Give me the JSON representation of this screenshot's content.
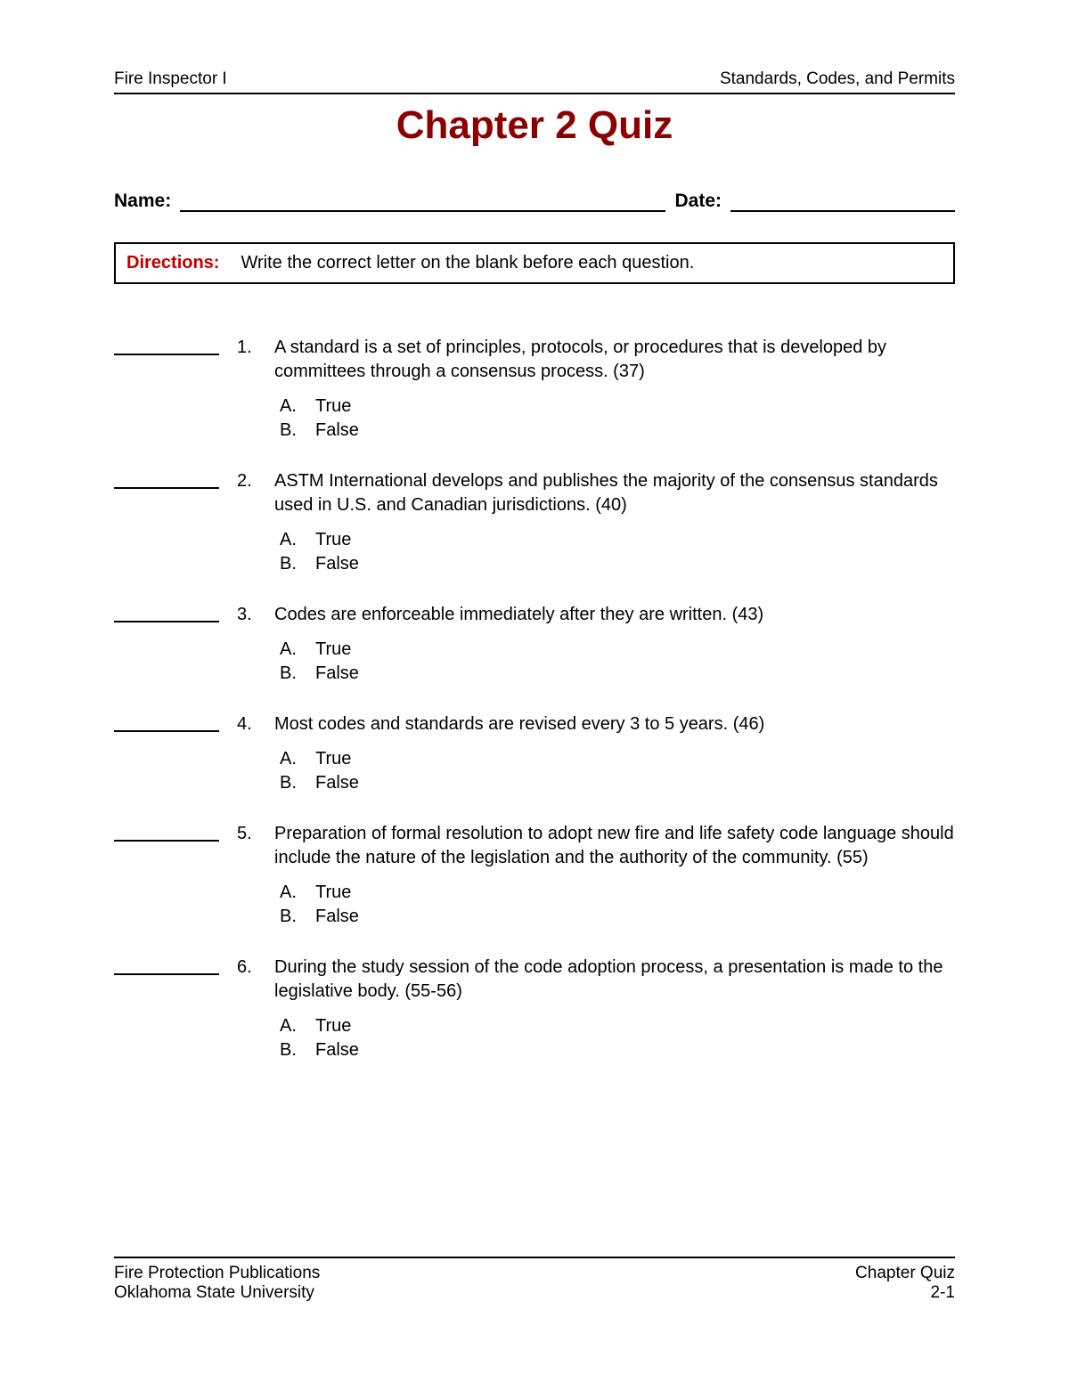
{
  "header": {
    "left": "Fire Inspector I",
    "right": "Standards, Codes, and Permits"
  },
  "title": "Chapter 2 Quiz",
  "fields": {
    "name_label": "Name:",
    "date_label": "Date:"
  },
  "directions": {
    "label": "Directions:",
    "text": "Write the correct letter on the blank before each question."
  },
  "option_labels": {
    "a": "A.",
    "b": "B."
  },
  "option_values": {
    "true": "True",
    "false": "False"
  },
  "questions": [
    {
      "num": "1.",
      "text": "A standard is a set of principles, protocols, or procedures that is developed by committees through a consensus process. (37)"
    },
    {
      "num": "2.",
      "text": "ASTM International develops and publishes the majority of the consensus standards used in U.S. and Canadian jurisdictions. (40)"
    },
    {
      "num": "3.",
      "text": "Codes are enforceable immediately after they are written. (43)"
    },
    {
      "num": "4.",
      "text": "Most codes and standards are revised every 3 to 5 years. (46)"
    },
    {
      "num": "5.",
      "text": "Preparation of formal resolution to adopt new fire and life safety code language should include the nature of the legislation and the authority of the community. (55)"
    },
    {
      "num": "6.",
      "text": "During the study session of the code adoption process, a presentation is made to the legislative body. (55-56)"
    }
  ],
  "footer": {
    "left1": "Fire Protection Publications",
    "left2": "Oklahoma State University",
    "right1": "Chapter Quiz",
    "right2": "2-1"
  },
  "colors": {
    "title": "#8b0000",
    "directions_label": "#c00000",
    "text": "#000000",
    "rule": "#000000",
    "background": "#ffffff"
  },
  "typography": {
    "body_font": "Verdana",
    "title_font": "Trebuchet MS",
    "title_size_pt": 33,
    "body_size_pt": 15,
    "header_size_pt": 14
  }
}
